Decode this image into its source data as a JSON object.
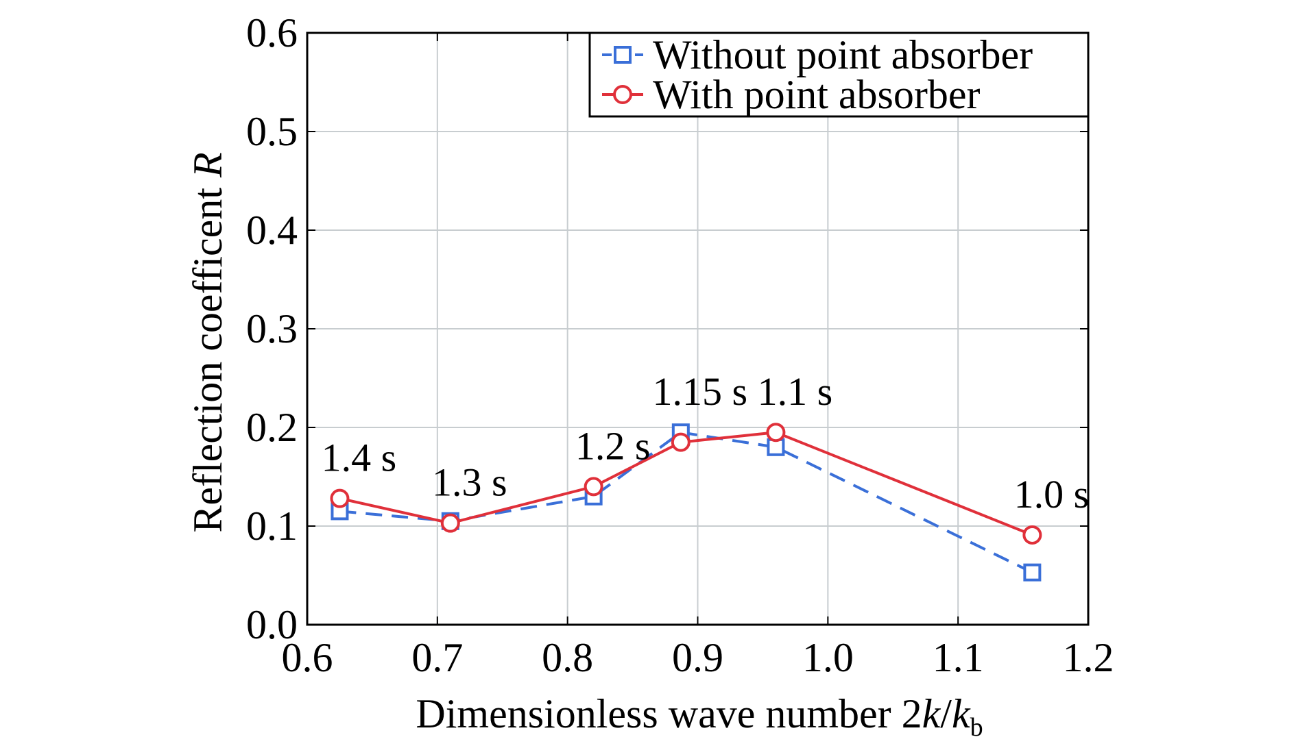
{
  "chart_data": {
    "type": "line",
    "xlabel": {
      "main": "Dimensionless wave number 2",
      "k1": "k",
      "slash": "/",
      "k2": "k",
      "sub": "b"
    },
    "ylabel": {
      "main": "Reflection coefficent ",
      "italic": "R"
    },
    "xlim": [
      0.6,
      1.2
    ],
    "ylim": [
      0.0,
      0.6
    ],
    "xticks": [
      "0.6",
      "0.7",
      "0.8",
      "0.9",
      "1.0",
      "1.1",
      "1.2"
    ],
    "yticks": [
      "0.0",
      "0.1",
      "0.2",
      "0.3",
      "0.4",
      "0.5",
      "0.6"
    ],
    "grid": true,
    "legend_position": "top-right",
    "series": [
      {
        "name": "Without point absorber",
        "color": "#3a6fd8",
        "line_style": "dashed",
        "marker": "square",
        "x": [
          0.625,
          0.71,
          0.82,
          0.887,
          0.96,
          1.157
        ],
        "y": [
          0.115,
          0.105,
          0.13,
          0.195,
          0.18,
          0.053
        ]
      },
      {
        "name": "With point absorber",
        "color": "#e0303a",
        "line_style": "solid",
        "marker": "circle",
        "x": [
          0.625,
          0.71,
          0.82,
          0.887,
          0.96,
          1.157
        ],
        "y": [
          0.128,
          0.103,
          0.14,
          0.185,
          0.195,
          0.091
        ]
      }
    ],
    "annotations": [
      {
        "text": "1.4 s",
        "x": 0.625,
        "y": 0.128
      },
      {
        "text": "1.3 s",
        "x": 0.71,
        "y": 0.103
      },
      {
        "text": "1.2 s",
        "x": 0.82,
        "y": 0.14
      },
      {
        "text": "1.15 s",
        "x": 0.887,
        "y": 0.195
      },
      {
        "text": "1.1 s",
        "x": 0.96,
        "y": 0.195
      },
      {
        "text": "1.0 s",
        "x": 1.157,
        "y": 0.091
      }
    ]
  }
}
